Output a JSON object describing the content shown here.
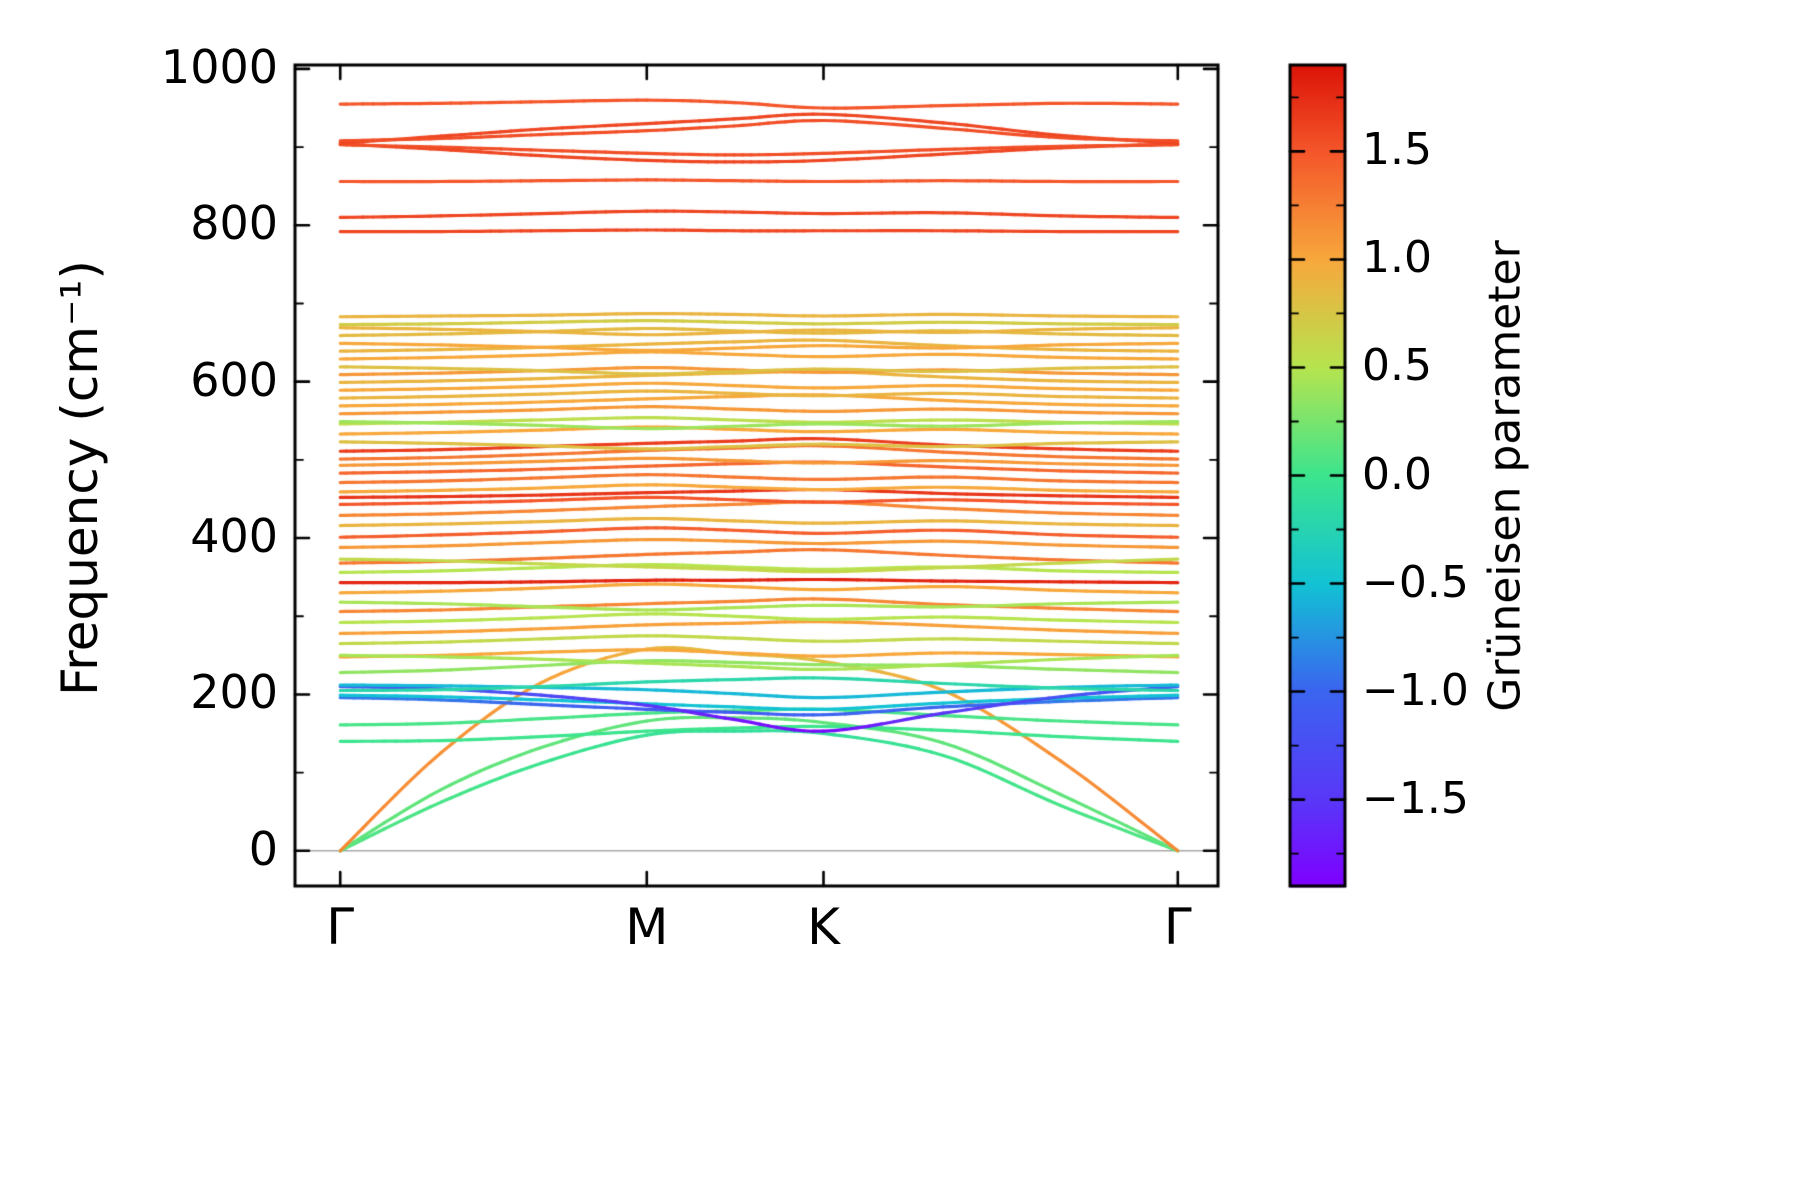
{
  "figure": {
    "background": "#ffffff",
    "frame_color": "#000000",
    "zero_line_color": "#a8a8a8"
  },
  "chart_data": {
    "type": "line",
    "variant": "phonon-band-structure-with-gruneisen-colormap",
    "title": "",
    "xlabel": "",
    "ylabel": "Frequency (cm⁻¹)",
    "x_ticks": [
      {
        "label": "Γ",
        "k": 0.0
      },
      {
        "label": "M",
        "k": 0.366
      },
      {
        "label": "K",
        "k": 0.577
      },
      {
        "label": "Γ",
        "k": 1.0
      }
    ],
    "y_ticks": [
      0,
      200,
      400,
      600,
      800,
      1000
    ],
    "y_minor_ticks": [
      100,
      300,
      500,
      700,
      900
    ],
    "ylim": [
      -45,
      1005
    ],
    "xlim": [
      -0.054,
      1.048
    ],
    "zero_line_y": 0,
    "colorbar": {
      "label": "Grüneisen parameter",
      "vmin": -1.9,
      "vmax": 1.9,
      "ticks": [
        1.5,
        1.0,
        0.5,
        0.0,
        -0.5,
        -1.0,
        -1.5
      ],
      "tick_labels": [
        "1.5",
        "1.0",
        "0.5",
        "0.0",
        "−0.5",
        "−1.0",
        "−1.5"
      ],
      "minor_tick_step": 0.5,
      "minor_tick_start": -1.75
    },
    "colormap": {
      "name": "rainbow",
      "stops": [
        [
          0.0,
          "#8000ff"
        ],
        [
          0.1,
          "#5a35f8"
        ],
        [
          0.237,
          "#3b64f0"
        ],
        [
          0.368,
          "#12c2d4"
        ],
        [
          0.5,
          "#3ce48e"
        ],
        [
          0.632,
          "#b6e44f"
        ],
        [
          0.763,
          "#f7a83c"
        ],
        [
          0.895,
          "#f4562a"
        ],
        [
          1.0,
          "#dc1408"
        ]
      ]
    },
    "k_x": [
      0,
      0.12,
      0.24,
      0.366,
      0.47,
      0.577,
      0.72,
      0.86,
      1.0
    ],
    "bands": [
      {
        "f": [
          0,
          62,
          112,
          148,
          153,
          150,
          122,
          58,
          0
        ],
        "g": [
          0.1,
          0.05,
          0,
          -0.05,
          -0.1,
          -0.1,
          0,
          0.05,
          0.1
        ]
      },
      {
        "f": [
          0,
          78,
          132,
          166,
          170,
          164,
          138,
          72,
          0
        ],
        "g": 0.15
      },
      {
        "f": [
          0,
          125,
          215,
          258,
          252,
          242,
          205,
          115,
          0
        ],
        "g": [
          1.2,
          1.15,
          1.05,
          0.9,
          0.8,
          0.8,
          1.0,
          1.15,
          1.2
        ]
      },
      {
        "f": [
          140,
          141,
          146,
          153,
          157,
          159,
          154,
          146,
          140
        ],
        "g": 0.0
      },
      {
        "f": [
          161,
          163,
          169,
          176,
          179,
          181,
          173,
          166,
          161
        ],
        "g": 0.05
      },
      {
        "f": [
          196,
          193,
          187,
          181,
          177,
          174,
          184,
          191,
          196
        ],
        "g": [
          -0.9,
          -0.9,
          -1.0,
          -1.1,
          -1.1,
          -1.0,
          -1.0,
          -0.9,
          -0.9
        ]
      },
      {
        "f": [
          199,
          197,
          193,
          188,
          184,
          181,
          189,
          195,
          199
        ],
        "g": -0.5
      },
      {
        "f": [
          210,
          207,
          199,
          186,
          168,
          153,
          176,
          197,
          210
        ],
        "g": [
          -1.1,
          -1.15,
          -1.3,
          -1.5,
          -1.75,
          -1.85,
          -1.5,
          -1.2,
          -1.1
        ]
      },
      {
        "f": [
          212,
          211,
          209,
          206,
          201,
          196,
          203,
          209,
          212
        ],
        "g": -0.55
      },
      {
        "f": [
          205,
          206,
          210,
          216,
          219,
          221,
          214,
          208,
          205
        ],
        "g": -0.2
      },
      {
        "f": [
          228,
          231,
          237,
          243,
          241,
          238,
          237,
          232,
          228
        ],
        "g": 0.35
      },
      {
        "f": [
          248,
          250,
          254,
          257,
          253,
          249,
          253,
          251,
          248
        ],
        "g": 1.0
      },
      {
        "f": [
          250,
          248,
          245,
          240,
          236,
          232,
          238,
          245,
          250
        ],
        "g": 0.45
      },
      {
        "f": [
          265,
          267,
          271,
          275,
          272,
          268,
          271,
          268,
          265
        ],
        "g": 0.6
      },
      {
        "f": [
          278,
          280,
          284,
          289,
          291,
          293,
          288,
          282,
          278
        ],
        "g": 1.05
      },
      {
        "f": [
          292,
          294,
          298,
          303,
          300,
          296,
          299,
          295,
          292
        ],
        "g": 0.5
      },
      {
        "f": [
          306,
          308,
          312,
          316,
          319,
          322,
          315,
          310,
          306
        ],
        "g": 1.2
      },
      {
        "f": [
          318,
          316,
          312,
          308,
          311,
          314,
          312,
          316,
          318
        ],
        "g": 0.45
      },
      {
        "f": [
          330,
          332,
          336,
          341,
          338,
          334,
          338,
          333,
          330
        ],
        "g": 1.0
      },
      {
        "f": [
          343,
          343,
          344,
          346,
          346,
          347,
          345,
          344,
          343
        ],
        "g": 1.8
      },
      {
        "f": [
          356,
          358,
          362,
          366,
          363,
          360,
          363,
          358,
          356
        ],
        "g": 0.5
      },
      {
        "f": [
          368,
          370,
          374,
          379,
          382,
          385,
          378,
          372,
          368
        ],
        "g": 1.3
      },
      {
        "f": [
          373,
          371,
          367,
          363,
          360,
          357,
          362,
          368,
          373
        ],
        "g": 0.6
      },
      {
        "f": [
          388,
          390,
          394,
          398,
          396,
          393,
          396,
          391,
          388
        ],
        "g": 1.1
      },
      {
        "f": [
          401,
          404,
          408,
          413,
          410,
          406,
          410,
          404,
          401
        ],
        "g": 1.45
      },
      {
        "f": [
          416,
          418,
          421,
          425,
          422,
          419,
          422,
          418,
          416
        ],
        "g": 0.9
      },
      {
        "f": [
          429,
          431,
          435,
          440,
          443,
          446,
          438,
          432,
          429
        ],
        "g": 1.2
      },
      {
        "f": [
          443,
          445,
          448,
          452,
          449,
          446,
          449,
          445,
          443
        ],
        "g": 1.5
      },
      {
        "f": [
          452,
          453,
          455,
          458,
          460,
          462,
          457,
          454,
          452
        ],
        "g": 1.7
      },
      {
        "f": [
          459,
          461,
          464,
          468,
          465,
          462,
          465,
          461,
          459
        ],
        "g": 1.0
      },
      {
        "f": [
          471,
          473,
          477,
          481,
          478,
          475,
          478,
          473,
          471
        ],
        "g": 1.3
      },
      {
        "f": [
          483,
          485,
          488,
          492,
          495,
          497,
          491,
          486,
          483
        ],
        "g": 1.4
      },
      {
        "f": [
          493,
          495,
          498,
          502,
          499,
          496,
          499,
          495,
          493
        ],
        "g": 1.1
      },
      {
        "f": [
          501,
          503,
          507,
          512,
          515,
          518,
          510,
          504,
          501
        ],
        "g": 1.3
      },
      {
        "f": [
          511,
          513,
          517,
          521,
          524,
          527,
          519,
          514,
          511
        ],
        "g": 1.65
      },
      {
        "f": [
          523,
          521,
          518,
          514,
          517,
          520,
          517,
          521,
          523
        ],
        "g": 0.8
      },
      {
        "f": [
          533,
          535,
          538,
          542,
          539,
          536,
          539,
          535,
          533
        ],
        "g": 1.0
      },
      {
        "f": [
          546,
          548,
          551,
          554,
          551,
          548,
          551,
          548,
          546
        ],
        "g": 0.55
      },
      {
        "f": [
          549,
          547,
          544,
          540,
          543,
          546,
          543,
          547,
          549
        ],
        "g": 0.4
      },
      {
        "f": [
          559,
          561,
          564,
          568,
          565,
          562,
          565,
          561,
          559
        ],
        "g": 1.1
      },
      {
        "f": [
          569,
          571,
          574,
          578,
          581,
          583,
          576,
          571,
          569
        ],
        "g": 1.0
      },
      {
        "f": [
          579,
          581,
          584,
          588,
          585,
          582,
          585,
          581,
          579
        ],
        "g": 0.9
      },
      {
        "f": [
          589,
          591,
          594,
          598,
          595,
          592,
          595,
          591,
          589
        ],
        "g": 1.0
      },
      {
        "f": [
          599,
          601,
          604,
          608,
          611,
          613,
          606,
          601,
          599
        ],
        "g": 0.9
      },
      {
        "f": [
          609,
          611,
          614,
          618,
          615,
          612,
          615,
          611,
          609
        ],
        "g": 1.1
      },
      {
        "f": [
          619,
          617,
          614,
          610,
          613,
          616,
          613,
          617,
          619
        ],
        "g": 0.8
      },
      {
        "f": [
          629,
          631,
          634,
          638,
          635,
          632,
          635,
          631,
          629
        ],
        "g": 1.0
      },
      {
        "f": [
          639,
          641,
          644,
          648,
          651,
          653,
          646,
          641,
          639
        ],
        "g": 0.9
      },
      {
        "f": [
          649,
          647,
          644,
          640,
          643,
          646,
          643,
          647,
          649
        ],
        "g": 1.0
      },
      {
        "f": [
          659,
          661,
          664,
          668,
          665,
          662,
          665,
          661,
          659
        ],
        "g": 0.85
      },
      {
        "f": [
          669,
          667,
          664,
          660,
          663,
          666,
          663,
          667,
          669
        ],
        "g": 0.9
      },
      {
        "f": [
          673,
          674,
          676,
          678,
          676,
          674,
          676,
          674,
          673
        ],
        "g": 0.7
      },
      {
        "f": [
          683,
          684,
          685,
          687,
          686,
          684,
          686,
          684,
          683
        ],
        "g": 0.9
      },
      {
        "f": [
          792,
          792,
          793,
          794,
          793,
          793,
          793,
          792,
          792
        ],
        "g": 1.6
      },
      {
        "f": [
          810,
          812,
          815,
          818,
          817,
          815,
          816,
          812,
          810
        ],
        "g": 1.6
      },
      {
        "f": [
          856,
          856,
          857,
          858,
          857,
          856,
          857,
          856,
          856
        ],
        "g": 1.5
      },
      {
        "f": [
          904,
          897,
          889,
          883,
          881,
          883,
          891,
          899,
          904
        ],
        "g": 1.6
      },
      {
        "f": [
          903,
          900,
          896,
          892,
          890,
          892,
          897,
          901,
          903
        ],
        "g": 1.55
      },
      {
        "f": [
          905,
          914,
          923,
          930,
          936,
          942,
          931,
          915,
          905
        ],
        "g": 1.6
      },
      {
        "f": [
          908,
          911,
          916,
          921,
          927,
          934,
          924,
          912,
          908
        ],
        "g": 1.55
      },
      {
        "f": [
          955,
          956,
          958,
          960,
          957,
          950,
          953,
          956,
          955
        ],
        "g": 1.5
      }
    ]
  }
}
